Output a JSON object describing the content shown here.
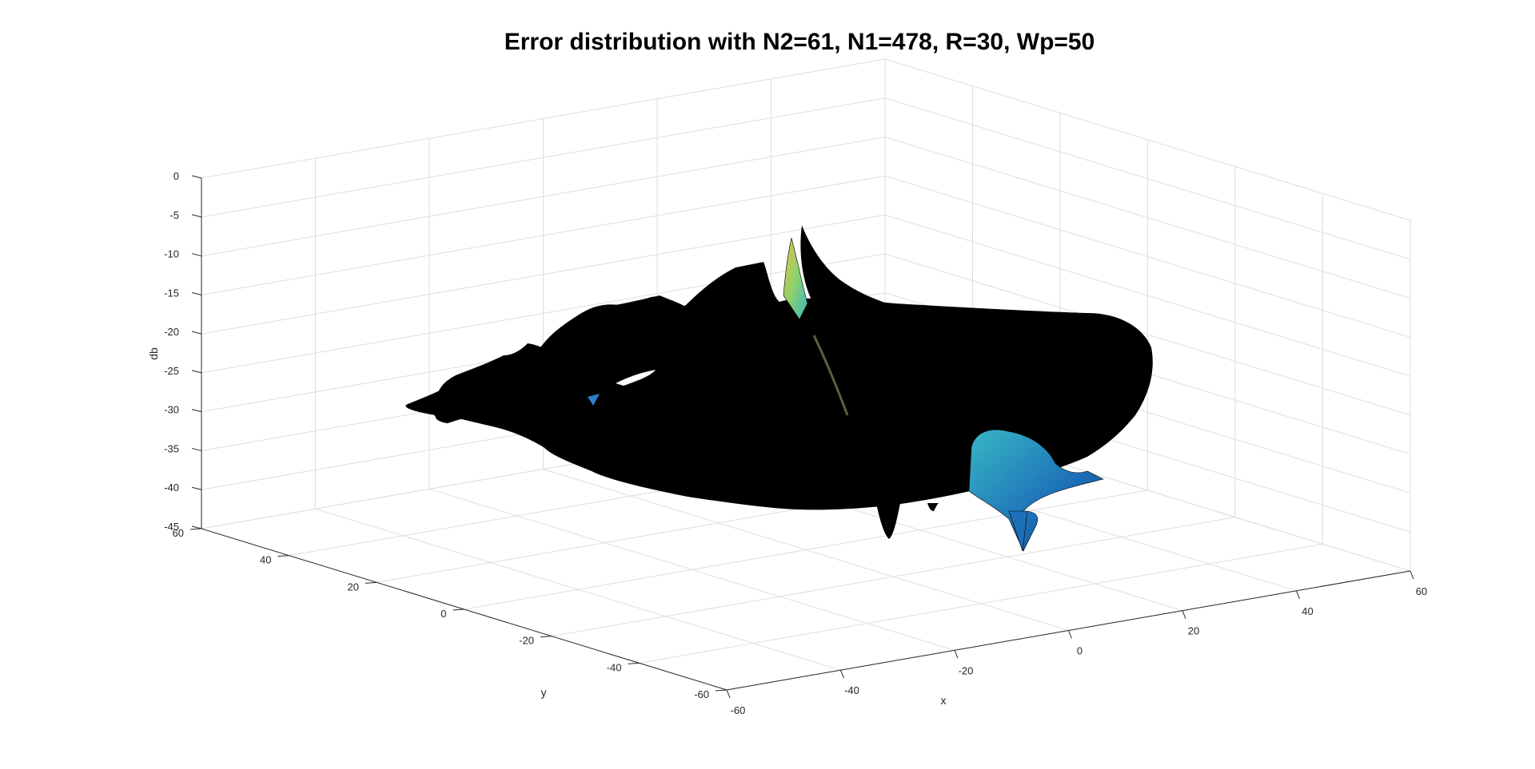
{
  "chart_data": {
    "type": "surface",
    "title": "Error distribution with N2=61, N1=478, R=30, Wp=50",
    "xlabel": "x",
    "ylabel": "y",
    "zlabel": "db",
    "xlim": [
      -60,
      60
    ],
    "ylim": [
      -60,
      60
    ],
    "zlim": [
      -45,
      0
    ],
    "x_ticks": [
      -60,
      -40,
      -20,
      0,
      20,
      40,
      60
    ],
    "y_ticks": [
      -60,
      -40,
      -20,
      0,
      20,
      40,
      60
    ],
    "z_ticks": [
      0,
      -5,
      -10,
      -15,
      -20,
      -25,
      -30,
      -35,
      -40,
      -45
    ],
    "grid": true,
    "colormap": "parula",
    "surface_edge_color": "#000000",
    "surface_highlight_colors": [
      "#1d6fb8",
      "#37b7c4",
      "#8fd16b",
      "#e0c04a"
    ]
  }
}
